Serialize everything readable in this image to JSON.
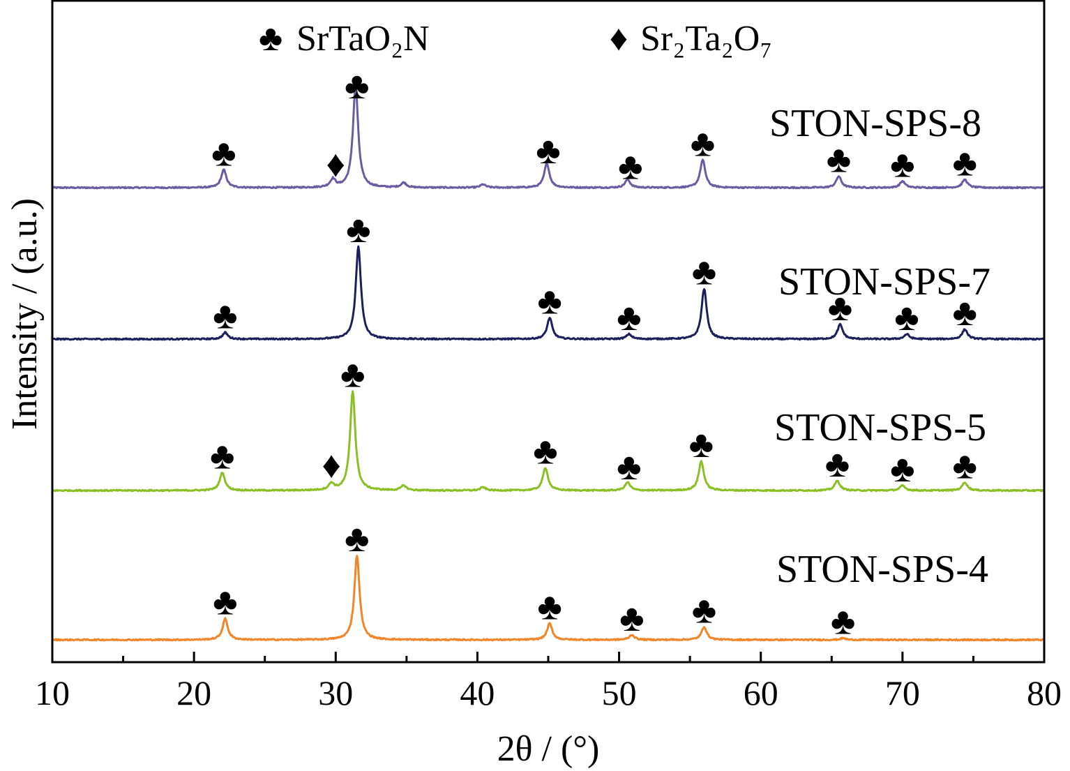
{
  "chart_data": {
    "type": "line",
    "xlabel": "2θ / (°)",
    "ylabel": "Intensity / (a.u.)",
    "xlim": [
      10,
      80
    ],
    "xticks": [
      "10",
      "20",
      "30",
      "40",
      "50",
      "60",
      "70",
      "80"
    ],
    "legend": [
      {
        "symbol": "♣",
        "label": "SrTaO₂N"
      },
      {
        "symbol": "♦",
        "label": "Sr₂Ta₂O₇"
      }
    ],
    "series": [
      {
        "name": "STON-SPS-8",
        "color": "#6a5ba3",
        "peaks": [
          [
            22.1,
            0.11
          ],
          [
            29.8,
            0.05
          ],
          [
            31.4,
            0.63
          ],
          [
            34.8,
            0.03
          ],
          [
            40.4,
            0.02
          ],
          [
            44.9,
            0.15
          ],
          [
            50.6,
            0.05
          ],
          [
            55.9,
            0.17
          ],
          [
            65.5,
            0.07
          ],
          [
            70.0,
            0.04
          ],
          [
            74.4,
            0.05
          ]
        ],
        "markers": [
          {
            "symbol": "♣",
            "x": 22.1
          },
          {
            "symbol": "♦",
            "x": 30.0
          },
          {
            "symbol": "♣",
            "x": 31.5
          },
          {
            "symbol": "♣",
            "x": 45.0
          },
          {
            "symbol": "♣",
            "x": 50.8
          },
          {
            "symbol": "♣",
            "x": 55.9
          },
          {
            "symbol": "♣",
            "x": 65.5
          },
          {
            "symbol": "♣",
            "x": 70.0
          },
          {
            "symbol": "♣",
            "x": 74.4
          }
        ]
      },
      {
        "name": "STON-SPS-7",
        "color": "#1b1f5c",
        "peaks": [
          [
            22.2,
            0.04
          ],
          [
            31.6,
            0.57
          ],
          [
            45.1,
            0.13
          ],
          [
            50.7,
            0.03
          ],
          [
            56.0,
            0.31
          ],
          [
            65.6,
            0.09
          ],
          [
            70.3,
            0.03
          ],
          [
            74.4,
            0.06
          ]
        ],
        "markers": [
          {
            "symbol": "♣",
            "x": 22.2
          },
          {
            "symbol": "♣",
            "x": 31.6
          },
          {
            "symbol": "♣",
            "x": 45.1
          },
          {
            "symbol": "♣",
            "x": 50.7
          },
          {
            "symbol": "♣",
            "x": 56.0
          },
          {
            "symbol": "♣",
            "x": 65.6
          },
          {
            "symbol": "♣",
            "x": 70.3
          },
          {
            "symbol": "♣",
            "x": 74.4
          }
        ]
      },
      {
        "name": "STON-SPS-5",
        "color": "#8cbf26",
        "peaks": [
          [
            22.0,
            0.11
          ],
          [
            29.7,
            0.04
          ],
          [
            31.2,
            0.61
          ],
          [
            34.8,
            0.03
          ],
          [
            40.4,
            0.02
          ],
          [
            44.8,
            0.14
          ],
          [
            50.6,
            0.05
          ],
          [
            55.8,
            0.18
          ],
          [
            65.4,
            0.06
          ],
          [
            70.0,
            0.03
          ],
          [
            74.4,
            0.05
          ]
        ],
        "markers": [
          {
            "symbol": "♣",
            "x": 22.0
          },
          {
            "symbol": "♦",
            "x": 29.7
          },
          {
            "symbol": "♣",
            "x": 31.2
          },
          {
            "symbol": "♣",
            "x": 44.8
          },
          {
            "symbol": "♣",
            "x": 50.7
          },
          {
            "symbol": "♣",
            "x": 55.8
          },
          {
            "symbol": "♣",
            "x": 65.4
          },
          {
            "symbol": "♣",
            "x": 70.0
          },
          {
            "symbol": "♣",
            "x": 74.4
          }
        ]
      },
      {
        "name": "STON-SPS-4",
        "color": "#f0862a",
        "peaks": [
          [
            22.2,
            0.13
          ],
          [
            31.5,
            0.52
          ],
          [
            45.1,
            0.1
          ],
          [
            50.9,
            0.03
          ],
          [
            56.0,
            0.08
          ],
          [
            65.8,
            0.01
          ]
        ],
        "markers": [
          {
            "symbol": "♣",
            "x": 22.2
          },
          {
            "symbol": "♣",
            "x": 31.5
          },
          {
            "symbol": "♣",
            "x": 45.1
          },
          {
            "symbol": "♣",
            "x": 50.9
          },
          {
            "symbol": "♣",
            "x": 56.0
          },
          {
            "symbol": "♣",
            "x": 65.8
          }
        ]
      }
    ]
  }
}
